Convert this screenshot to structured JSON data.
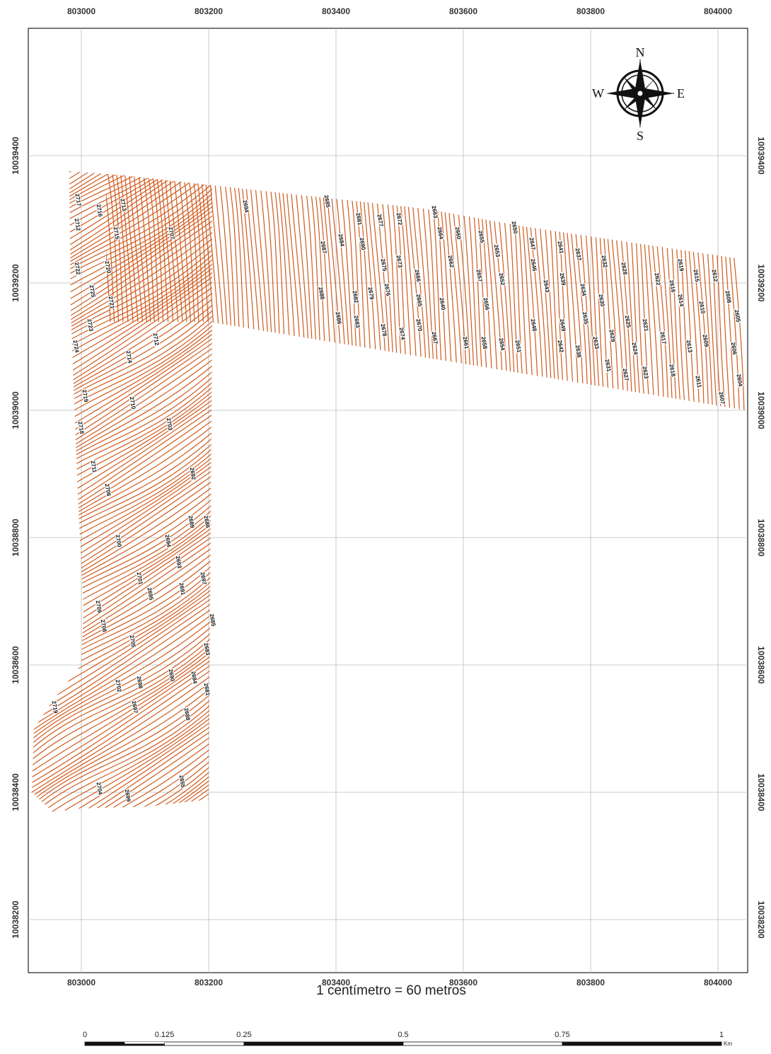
{
  "map": {
    "x_ticks": [
      803000,
      803200,
      803400,
      803600,
      803800,
      804000
    ],
    "y_ticks": [
      10039400,
      10039200,
      10039000,
      10038800,
      10038600,
      10038400,
      10038200
    ],
    "compass": {
      "n": "N",
      "s": "S",
      "e": "E",
      "w": "W"
    },
    "scale_text": "1 centímetro = 60 metros",
    "scale_bar": {
      "ticks": [
        0,
        0.125,
        0.25,
        0.5,
        0.75,
        1
      ],
      "unit": "Km"
    },
    "contour_labels": [
      "2717",
      "2716",
      "2713",
      "2715",
      "2712",
      "2707",
      "2694",
      "2685",
      "2681",
      "2677",
      "2672",
      "2663",
      "2664",
      "2660",
      "2655",
      "2650",
      "2653",
      "2647",
      "2641",
      "2637",
      "2632",
      "2628",
      "2622",
      "2619",
      "2616",
      "2615",
      "2612",
      "2684",
      "2690",
      "2687",
      "2675",
      "2673",
      "2662",
      "2666",
      "2657",
      "2652",
      "2646",
      "2639",
      "2643",
      "2634",
      "2630",
      "2688",
      "2686",
      "2682",
      "2679",
      "2676",
      "2683",
      "2678",
      "2674",
      "2670",
      "2667",
      "2665",
      "2661",
      "2658",
      "2656",
      "2654",
      "2651",
      "2648",
      "2640",
      "2649",
      "2642",
      "2638",
      "2635",
      "2633",
      "2629",
      "2631",
      "2625",
      "2624",
      "2627",
      "2623",
      "2621",
      "2617",
      "2614",
      "2610",
      "2608",
      "2605",
      "2613",
      "2609",
      "2606",
      "2618",
      "2611",
      "2607",
      "2604",
      "2720",
      "2722",
      "2725",
      "2721",
      "2723",
      "2724",
      "2712",
      "2714",
      "2719",
      "2710",
      "2718",
      "2703",
      "2692",
      "2711",
      "2706",
      "2689",
      "2686",
      "2700",
      "2694",
      "2693",
      "2697",
      "2691",
      "2701",
      "2695",
      "2709",
      "2708",
      "2685",
      "2705",
      "2683",
      "2698",
      "2690",
      "2684",
      "2681",
      "2702",
      "2697",
      "2688",
      "2719",
      "2704",
      "2699",
      "2655"
    ]
  }
}
